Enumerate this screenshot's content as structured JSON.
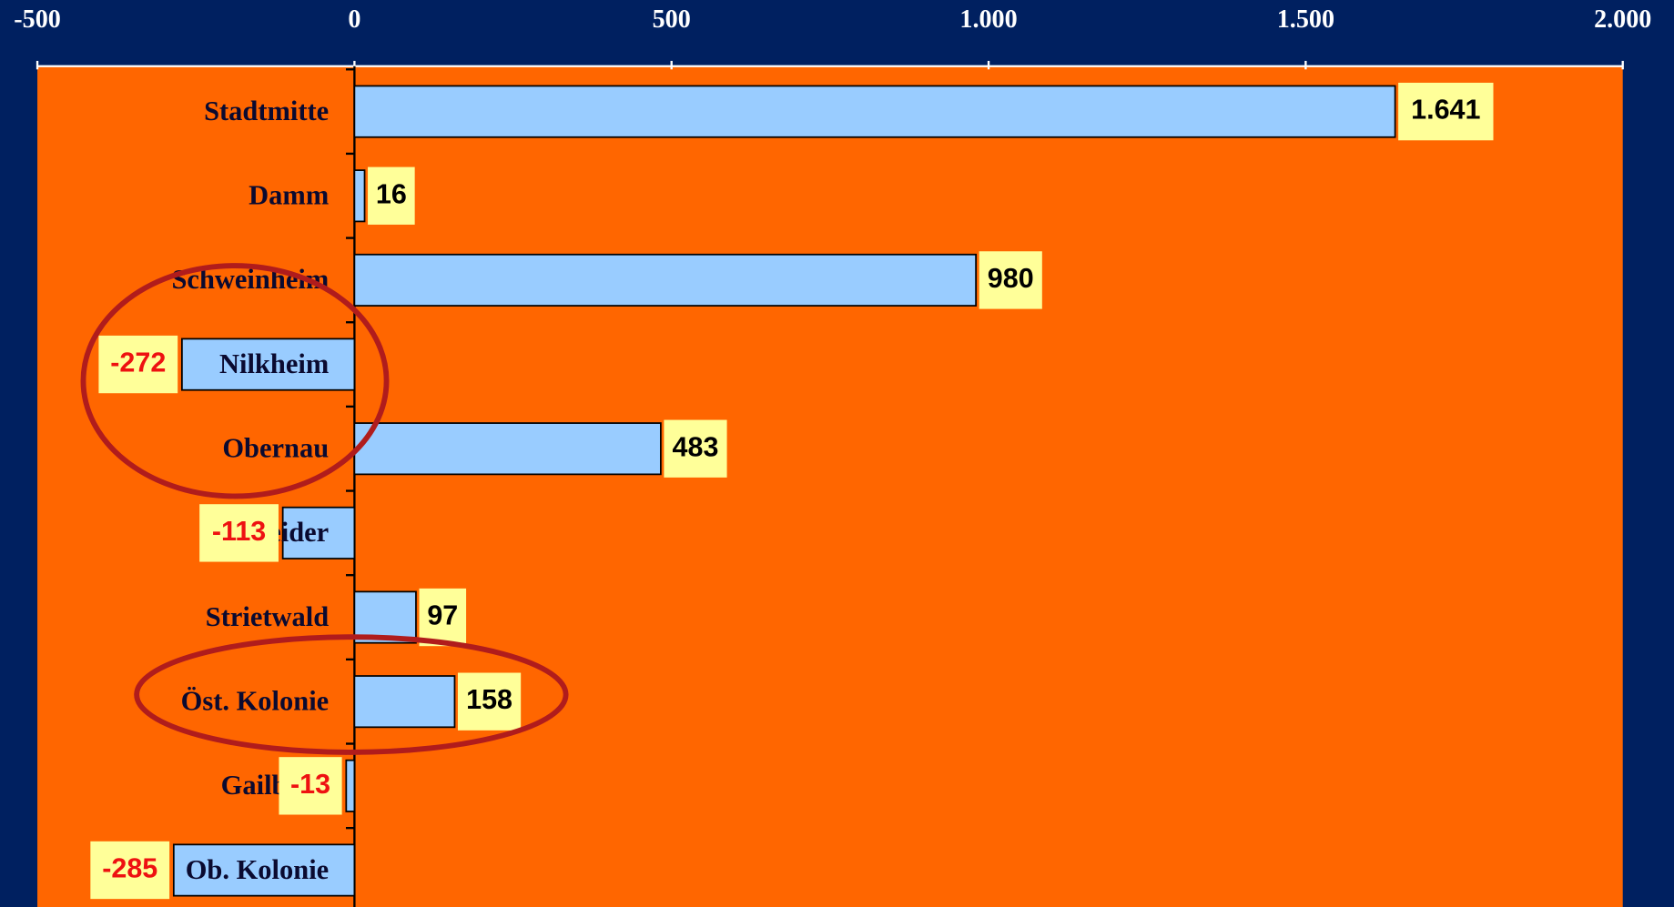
{
  "chart_data": {
    "type": "bar",
    "orientation": "horizontal",
    "categories": [
      "Stadtmitte",
      "Damm",
      "Schweinheim",
      "Nilkheim",
      "Obernau",
      "Leider",
      "Strietwald",
      "Öst. Kolonie",
      "Gailbach",
      "Ob. Kolonie"
    ],
    "values": [
      1641,
      16,
      980,
      -272,
      483,
      -113,
      97,
      158,
      -13,
      -285
    ],
    "value_labels": [
      "1.641",
      "16",
      "980",
      "-272",
      "483",
      "-113",
      "97",
      "158",
      "-13",
      "-285"
    ],
    "color": "#99ccff",
    "xlim": [
      -500,
      2000
    ],
    "xticks": [
      -500,
      0,
      500,
      {
        "value": 1000,
        "label": "1.000"
      },
      {
        "value": 1500,
        "label": "1.500"
      },
      {
        "value": 2000,
        "label": "2.000"
      }
    ]
  }
}
